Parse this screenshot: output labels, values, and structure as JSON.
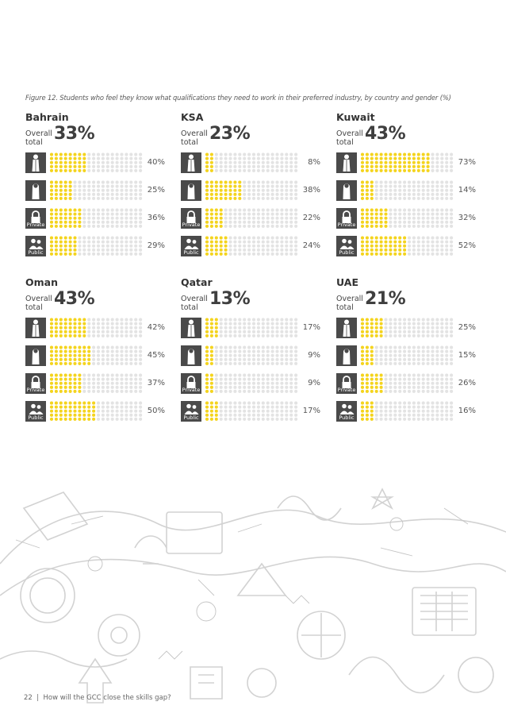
{
  "caption": "Figure 12. Students who feel they know what qualifications they need to work in their preferred industry, by country and gender (%)",
  "overall_label": "Overall total",
  "row_labels": {
    "male": "",
    "female": "",
    "private": "Private",
    "public": "Public"
  },
  "icons": {
    "male": "male-figure-icon",
    "female": "female-figure-icon",
    "private": "padlock-icon",
    "public": "people-group-icon"
  },
  "colors": {
    "filled_dot": "#f4d41e",
    "empty_dot": "#e3e3e3",
    "icon_box": "#4a4a4a"
  },
  "footer": {
    "page_number": "22",
    "separator": "|",
    "title": "How will the GCC close the skills gap?"
  },
  "chart_data": [
    {
      "type": "bar",
      "title": "Bahrain",
      "overall": "33%",
      "categories": [
        "Male",
        "Female",
        "Private",
        "Public"
      ],
      "values": [
        40,
        25,
        36,
        29
      ],
      "value_labels": [
        "40%",
        "25%",
        "36%",
        "29%"
      ]
    },
    {
      "type": "bar",
      "title": "KSA",
      "overall": "23%",
      "categories": [
        "Male",
        "Female",
        "Private",
        "Public"
      ],
      "values": [
        8,
        38,
        22,
        24
      ],
      "value_labels": [
        "8%",
        "38%",
        "22%",
        "24%"
      ]
    },
    {
      "type": "bar",
      "title": "Kuwait",
      "overall": "43%",
      "categories": [
        "Male",
        "Female",
        "Private",
        "Public"
      ],
      "values": [
        73,
        14,
        32,
        52
      ],
      "value_labels": [
        "73%",
        "14%",
        "32%",
        "52%"
      ]
    },
    {
      "type": "bar",
      "title": "Oman",
      "overall": "43%",
      "categories": [
        "Male",
        "Female",
        "Private",
        "Public"
      ],
      "values": [
        42,
        45,
        37,
        50
      ],
      "value_labels": [
        "42%",
        "45%",
        "37%",
        "50%"
      ]
    },
    {
      "type": "bar",
      "title": "Qatar",
      "overall": "13%",
      "categories": [
        "Male",
        "Female",
        "Private",
        "Public"
      ],
      "values": [
        17,
        9,
        9,
        17
      ],
      "value_labels": [
        "17%",
        "9%",
        "9%",
        "17%"
      ]
    },
    {
      "type": "bar",
      "title": "UAE",
      "overall": "21%",
      "categories": [
        "Male",
        "Female",
        "Private",
        "Public"
      ],
      "values": [
        25,
        15,
        26,
        16
      ],
      "value_labels": [
        "25%",
        "15%",
        "26%",
        "16%"
      ]
    }
  ]
}
